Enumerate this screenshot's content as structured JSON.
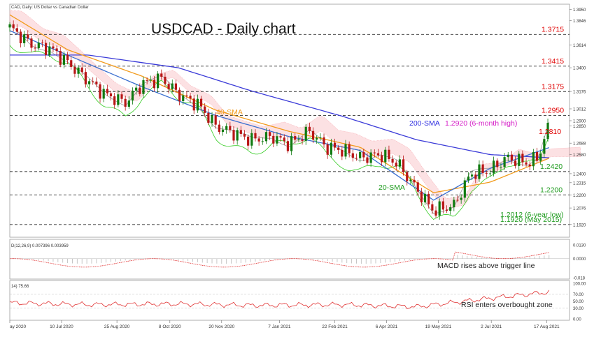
{
  "header": {
    "symbol_label": "CAD, Daily: US Dollar vs Canadian Dollar",
    "title": "USDCAD - Daily chart"
  },
  "colors": {
    "price_up": "#107a10",
    "price_down": "#b81616",
    "sma20": "#3a6fd0",
    "sma40": "#f29b1c",
    "sma200": "#3b3bd8",
    "ichimoku_chikou": "#33cc22",
    "ichimoku_tenkan": "#9a9a9a",
    "ichimoku_cloud": "#f7a9b0",
    "macd": "#e03030",
    "rsi": "#e03030",
    "level_label": "#e00000",
    "annotation_green": "#1c9a1c",
    "annotation_magenta": "#d622c8",
    "annotation_blue": "#3030e0",
    "annotation_orange": "#f29b1c"
  },
  "chart_data": {
    "type": "line",
    "title": "USDCAD - Daily chart",
    "x_ticks": [
      "ay 2020",
      "10 Jul 2020",
      "25 Aug 2020",
      "8 Oct 2020",
      "20 Nov 2020",
      "7 Jan 2021",
      "22 Feb 2021",
      "6 Apr 2021",
      "19 May 2021",
      "2 Jul 2021",
      "17 Aug 2021"
    ],
    "price_y_ticks": [
      "1.3950",
      "1.3846",
      "1.3614",
      "1.3400",
      "1.3176",
      "1.3012",
      "1.2900",
      "1.2850",
      "1.2688",
      "1.2580",
      "1.2400",
      "1.2315",
      "1.2200",
      "1.2076",
      "1.1920"
    ],
    "ylim": [
      1.18,
      1.4
    ],
    "series": [
      {
        "name": "USDCAD",
        "x": [
          "2020-05-28",
          "2020-06-15",
          "2020-07-01",
          "2020-07-15",
          "2020-08-01",
          "2020-08-15",
          "2020-09-01",
          "2020-09-15",
          "2020-10-01",
          "2020-10-15",
          "2020-11-01",
          "2020-11-15",
          "2020-12-01",
          "2020-12-15",
          "2021-01-01",
          "2021-01-15",
          "2021-02-01",
          "2021-02-15",
          "2021-03-01",
          "2021-03-15",
          "2021-04-01",
          "2021-04-15",
          "2021-05-01",
          "2021-05-15",
          "2021-06-01",
          "2021-06-15",
          "2021-07-01",
          "2021-07-15",
          "2021-08-01",
          "2021-08-10",
          "2021-08-20"
        ],
        "values": [
          1.378,
          1.362,
          1.358,
          1.345,
          1.328,
          1.315,
          1.307,
          1.325,
          1.33,
          1.315,
          1.305,
          1.285,
          1.278,
          1.272,
          1.275,
          1.268,
          1.28,
          1.265,
          1.262,
          1.255,
          1.258,
          1.25,
          1.225,
          1.205,
          1.21,
          1.24,
          1.243,
          1.255,
          1.25,
          1.255,
          1.29
        ]
      },
      {
        "name": "200-SMA",
        "x": [
          "2020-05-28",
          "2020-08-01",
          "2020-10-15",
          "2020-12-15",
          "2021-03-01",
          "2021-05-01",
          "2021-07-01",
          "2021-08-20"
        ],
        "values": [
          1.352,
          1.352,
          1.34,
          1.318,
          1.294,
          1.272,
          1.258,
          1.255
        ]
      },
      {
        "name": "40-SMA",
        "x": [
          "2020-05-28",
          "2020-07-15",
          "2020-09-15",
          "2020-11-15",
          "2021-01-15",
          "2021-03-15",
          "2021-05-15",
          "2021-07-01",
          "2021-08-20"
        ],
        "values": [
          1.39,
          1.357,
          1.332,
          1.3,
          1.28,
          1.265,
          1.222,
          1.232,
          1.255
        ]
      },
      {
        "name": "20-SMA",
        "x": [
          "2020-05-28",
          "2020-07-15",
          "2020-09-15",
          "2020-11-15",
          "2021-01-15",
          "2021-03-15",
          "2021-05-15",
          "2021-07-01",
          "2021-08-20"
        ],
        "values": [
          1.375,
          1.352,
          1.322,
          1.295,
          1.275,
          1.262,
          1.215,
          1.245,
          1.265
        ]
      }
    ],
    "horizontal_levels": [
      {
        "value": 1.3715,
        "label": "1.3715"
      },
      {
        "value": 1.3415,
        "label": "1.3415"
      },
      {
        "value": 1.3175,
        "label": "1.3175"
      },
      {
        "value": 1.295,
        "label": "1.2950"
      },
      {
        "value": 1.242,
        "label": "1.2420"
      },
      {
        "value": 1.22,
        "label": "1.2200"
      },
      {
        "value": 1.192,
        "label": "1.1920 (May 2015)"
      }
    ],
    "annotations": [
      {
        "text": "1.2920 (6-month high)",
        "ref": "1.2920"
      },
      {
        "text": "1.2810",
        "ref": "1.2810"
      },
      {
        "text": "200-SMA"
      },
      {
        "text": "40-SMA"
      },
      {
        "text": "20-SMA"
      },
      {
        "text": "1.2012 (6-year low)",
        "ref": "1.2012"
      }
    ],
    "macd": {
      "label": "D(12,26,9) 0.007396 0.003959",
      "annotation": "MACD rises above trigger line",
      "y_ticks": [
        "0.0130",
        "0.0000",
        "-0.018"
      ]
    },
    "rsi": {
      "label": "14) 75.66",
      "annotation": "RSI enters overbought zone",
      "y_ticks": [
        "100.00",
        "70.00",
        "50.00",
        "30.00",
        "0.00"
      ],
      "x": [
        "2020-05-28",
        "2020-08-01",
        "2020-10-15",
        "2020-12-15",
        "2021-03-01",
        "2021-05-01",
        "2021-07-01",
        "2021-08-20"
      ],
      "values": [
        45,
        40,
        42,
        38,
        40,
        34,
        58,
        75.66
      ]
    }
  }
}
